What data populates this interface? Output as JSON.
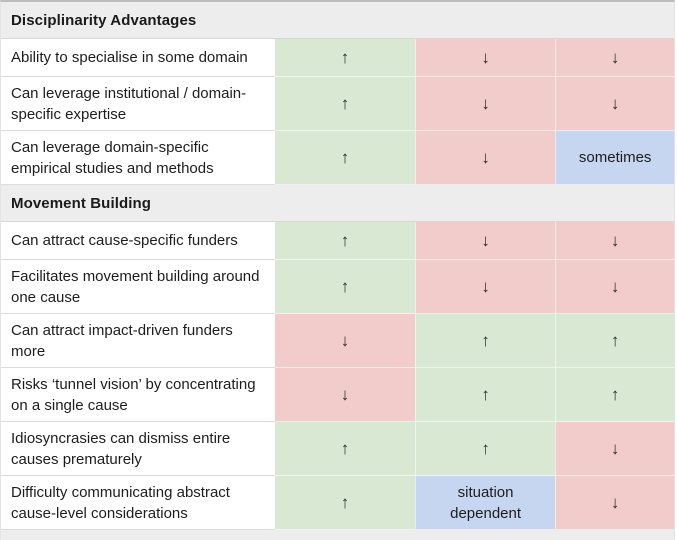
{
  "palette": {
    "positive": "#d9e8d3",
    "negative": "#f2cccb",
    "neutral": "#c7d6f0",
    "section_header_bg": "#ededed",
    "text": "#1d1d1f"
  },
  "symbols": {
    "up": "↑",
    "down": "↓"
  },
  "table": {
    "sections": [
      {
        "header": "Disciplinarity Advantages",
        "rows": [
          {
            "label": "Ability to specialise in some domain",
            "cells": [
              {
                "value": "↑",
                "tone": "positive"
              },
              {
                "value": "↓",
                "tone": "negative"
              },
              {
                "value": "↓",
                "tone": "negative"
              }
            ]
          },
          {
            "label": "Can leverage institutional / domain-specific expertise",
            "cells": [
              {
                "value": "↑",
                "tone": "positive"
              },
              {
                "value": "↓",
                "tone": "negative"
              },
              {
                "value": "↓",
                "tone": "negative"
              }
            ]
          },
          {
            "label": "Can leverage domain-specific empirical studies and methods",
            "cells": [
              {
                "value": "↑",
                "tone": "positive"
              },
              {
                "value": "↓",
                "tone": "negative"
              },
              {
                "value": "sometimes",
                "tone": "neutral"
              }
            ]
          }
        ]
      },
      {
        "header": "Movement Building",
        "rows": [
          {
            "label": "Can attract cause-specific funders",
            "cells": [
              {
                "value": "↑",
                "tone": "positive"
              },
              {
                "value": "↓",
                "tone": "negative"
              },
              {
                "value": "↓",
                "tone": "negative"
              }
            ]
          },
          {
            "label": "Facilitates movement building around one cause",
            "cells": [
              {
                "value": "↑",
                "tone": "positive"
              },
              {
                "value": "↓",
                "tone": "negative"
              },
              {
                "value": "↓",
                "tone": "negative"
              }
            ]
          },
          {
            "label": "Can attract impact-driven funders more",
            "cells": [
              {
                "value": "↓",
                "tone": "negative"
              },
              {
                "value": "↑",
                "tone": "positive"
              },
              {
                "value": "↑",
                "tone": "positive"
              }
            ]
          },
          {
            "label": "Risks ‘tunnel vision’ by concentrating on a single cause",
            "cells": [
              {
                "value": "↓",
                "tone": "negative"
              },
              {
                "value": "↑",
                "tone": "positive"
              },
              {
                "value": "↑",
                "tone": "positive"
              }
            ]
          },
          {
            "label": "Idiosyncrasies can dismiss entire causes prematurely",
            "cells": [
              {
                "value": "↑",
                "tone": "positive"
              },
              {
                "value": "↑",
                "tone": "positive"
              },
              {
                "value": "↓",
                "tone": "negative"
              }
            ]
          },
          {
            "label": "Difficulty communicating abstract cause-level considerations",
            "cells": [
              {
                "value": "↑",
                "tone": "positive"
              },
              {
                "value": "situation dependent",
                "tone": "neutral"
              },
              {
                "value": "↓",
                "tone": "negative"
              }
            ]
          }
        ]
      }
    ]
  },
  "chart_data": {
    "type": "table",
    "title": "",
    "num_value_columns": 3,
    "cell_legend": {
      "↑": "advantage (green)",
      "↓": "disadvantage (pink)",
      "text": "conditional (blue)"
    },
    "sections": [
      {
        "header": "Disciplinarity Advantages",
        "rows": [
          {
            "label": "Ability to specialise in some domain",
            "values": [
              "↑",
              "↓",
              "↓"
            ],
            "tones": [
              "positive",
              "negative",
              "negative"
            ]
          },
          {
            "label": "Can leverage institutional / domain-specific expertise",
            "values": [
              "↑",
              "↓",
              "↓"
            ],
            "tones": [
              "positive",
              "negative",
              "negative"
            ]
          },
          {
            "label": "Can leverage domain-specific empirical studies and methods",
            "values": [
              "↑",
              "↓",
              "sometimes"
            ],
            "tones": [
              "positive",
              "negative",
              "neutral"
            ]
          }
        ]
      },
      {
        "header": "Movement Building",
        "rows": [
          {
            "label": "Can attract cause-specific funders",
            "values": [
              "↑",
              "↓",
              "↓"
            ],
            "tones": [
              "positive",
              "negative",
              "negative"
            ]
          },
          {
            "label": "Facilitates movement building around one cause",
            "values": [
              "↑",
              "↓",
              "↓"
            ],
            "tones": [
              "positive",
              "negative",
              "negative"
            ]
          },
          {
            "label": "Can attract impact-driven funders more",
            "values": [
              "↓",
              "↑",
              "↑"
            ],
            "tones": [
              "negative",
              "positive",
              "positive"
            ]
          },
          {
            "label": "Risks ‘tunnel vision’ by concentrating on a single cause",
            "values": [
              "↓",
              "↑",
              "↑"
            ],
            "tones": [
              "negative",
              "positive",
              "positive"
            ]
          },
          {
            "label": "Idiosyncrasies can dismiss entire causes prematurely",
            "values": [
              "↑",
              "↑",
              "↓"
            ],
            "tones": [
              "positive",
              "positive",
              "negative"
            ]
          },
          {
            "label": "Difficulty communicating abstract cause-level considerations",
            "values": [
              "↑",
              "situation dependent",
              "↓"
            ],
            "tones": [
              "positive",
              "neutral",
              "negative"
            ]
          }
        ]
      }
    ]
  }
}
